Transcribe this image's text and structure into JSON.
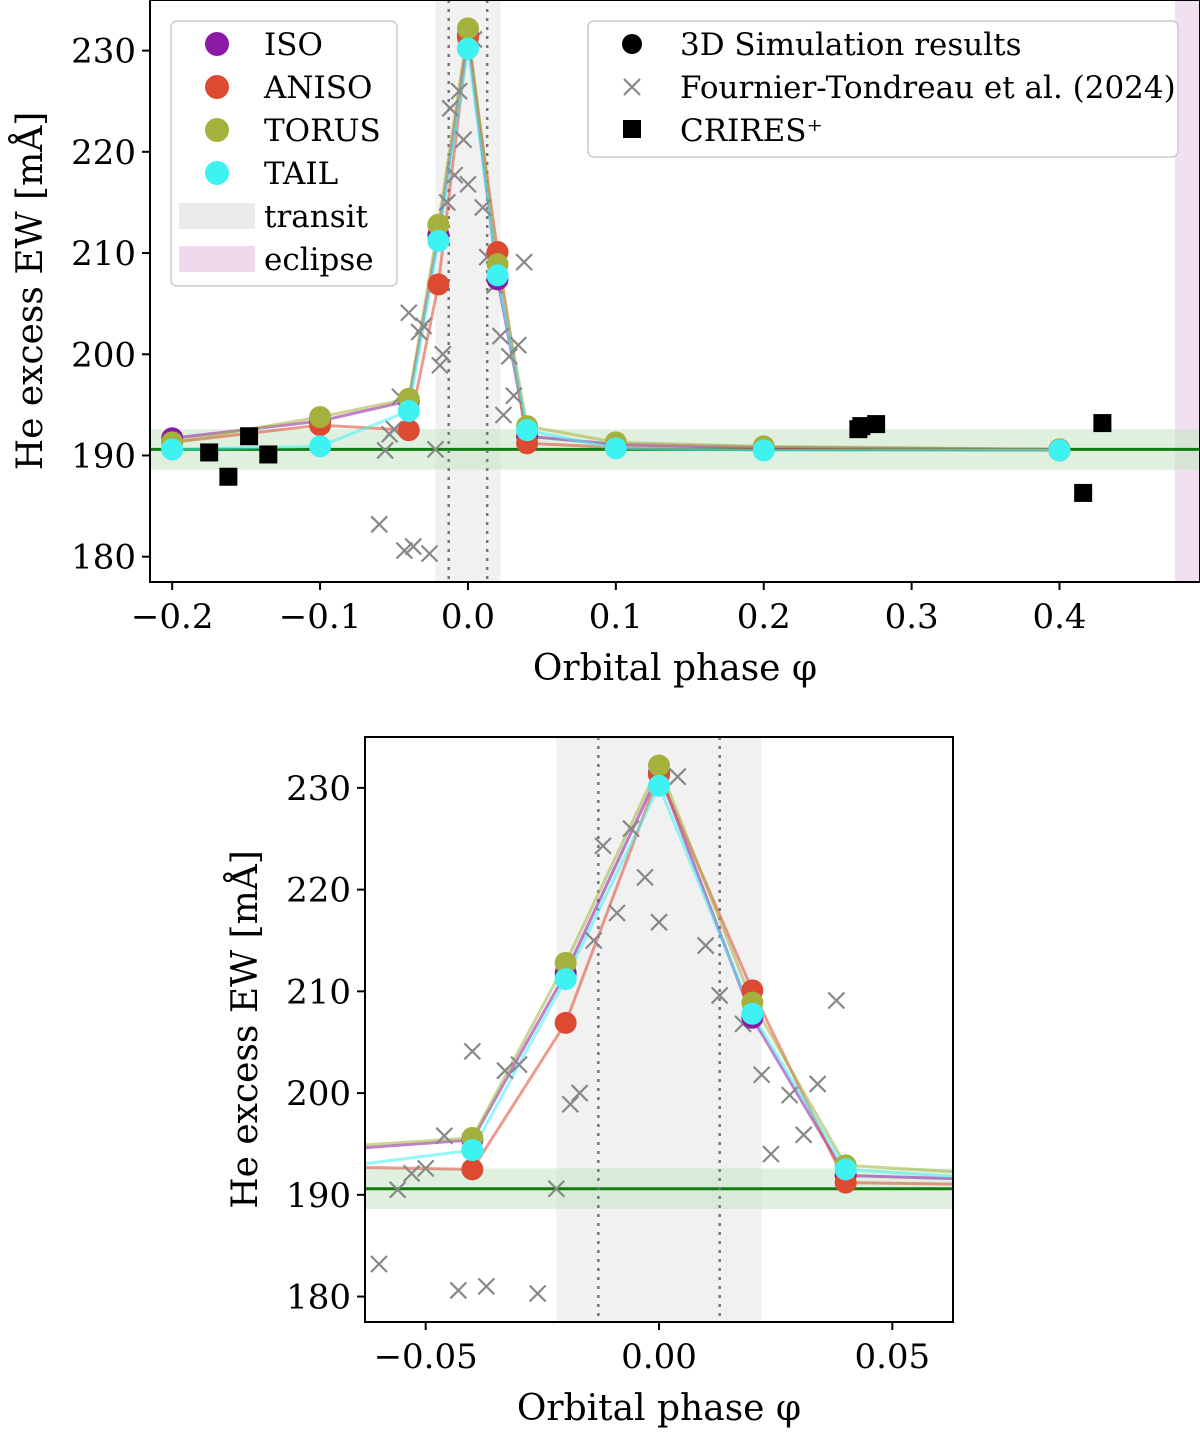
{
  "chart_data": [
    {
      "type": "scatter",
      "title": "",
      "xlabel": "Orbital phase φ",
      "ylabel": "He excess EW [mÅ]",
      "xlim": [
        -0.215,
        0.495
      ],
      "ylim": [
        177.5,
        235
      ],
      "xticks": [
        -0.2,
        -0.1,
        0.0,
        0.1,
        0.2,
        0.3,
        0.4
      ],
      "xtick_labels": [
        "−0.2",
        "−0.1",
        "0.0",
        "0.1",
        "0.2",
        "0.3",
        "0.4"
      ],
      "yticks": [
        180,
        190,
        200,
        210,
        220,
        230
      ],
      "ytick_labels": [
        "180",
        "190",
        "200",
        "210",
        "220",
        "230"
      ],
      "grid": false,
      "legend_placement": [
        "top-left",
        "top-right"
      ],
      "transit_band": [
        -0.022,
        0.022
      ],
      "transit_lines": [
        -0.013,
        0.013
      ],
      "eclipse_band": [
        0.478,
        0.5
      ],
      "baseline": {
        "value": 190.6,
        "band": [
          188.6,
          192.6
        ]
      },
      "simulation_phases": [
        -0.2,
        -0.1,
        -0.04,
        -0.02,
        0.0,
        0.02,
        0.04,
        0.1,
        0.2,
        0.4
      ],
      "series": [
        {
          "name": "ISO",
          "color": "#8b1aa6",
          "values": [
            191.7,
            193.4,
            195.4,
            211.8,
            231.5,
            207.4,
            191.9,
            191.1,
            190.8,
            190.6
          ]
        },
        {
          "name": "ANISO",
          "color": "#dc4a32",
          "values": [
            191.3,
            193.0,
            192.5,
            206.9,
            231.3,
            210.1,
            191.2,
            190.8,
            190.6,
            190.5
          ]
        },
        {
          "name": "TORUS",
          "color": "#a4b13c",
          "values": [
            191.3,
            193.8,
            195.6,
            212.8,
            232.2,
            208.9,
            192.9,
            191.3,
            190.9,
            190.6
          ]
        },
        {
          "name": "TAIL",
          "color": "#3ef2f2",
          "values": [
            190.6,
            190.9,
            194.4,
            211.2,
            230.2,
            207.8,
            192.5,
            190.7,
            190.5,
            190.5
          ]
        }
      ],
      "observations": {
        "name": "Fournier-Tondreau et al. (2024)",
        "x": [
          -0.06,
          -0.056,
          -0.053,
          -0.05,
          -0.046,
          -0.043,
          -0.04,
          -0.037,
          -0.033,
          -0.03,
          -0.026,
          -0.022,
          -0.019,
          -0.017,
          -0.014,
          -0.012,
          -0.009,
          -0.006,
          -0.003,
          0.0,
          0.004,
          0.01,
          0.013,
          0.018,
          0.022,
          0.024,
          0.028,
          0.031,
          0.034,
          0.038
        ],
        "y": [
          183.2,
          190.5,
          192.1,
          192.6,
          195.8,
          180.6,
          204.1,
          181.0,
          202.2,
          202.8,
          180.3,
          190.6,
          198.9,
          200.0,
          215.0,
          224.3,
          217.7,
          226.0,
          221.2,
          216.8,
          231.1,
          214.5,
          209.6,
          206.8,
          201.8,
          194.0,
          199.8,
          195.9,
          200.9,
          209.1
        ]
      },
      "crires": {
        "name": "CRIRES$^+$",
        "x": [
          -0.175,
          -0.162,
          -0.148,
          -0.135,
          0.264,
          0.266,
          0.276,
          0.416,
          0.429
        ],
        "y": [
          190.3,
          187.9,
          191.9,
          190.1,
          192.6,
          192.9,
          193.1,
          186.3,
          193.2
        ]
      },
      "legend1": [
        "ISO",
        "ANISO",
        "TORUS",
        "TAIL",
        "transit",
        "eclipse"
      ],
      "legend2": [
        "3D Simulation results",
        "Fournier-Tondreau et al. (2024)",
        "CRIRES⁺"
      ]
    },
    {
      "type": "scatter",
      "title": "",
      "xlabel": "Orbital phase φ",
      "ylabel": "He excess EW [mÅ]",
      "xlim": [
        -0.063,
        0.063
      ],
      "ylim": [
        177.5,
        235
      ],
      "xticks": [
        -0.05,
        0.0,
        0.05
      ],
      "xtick_labels": [
        "−0.05",
        "0.00",
        "0.05"
      ],
      "yticks": [
        180,
        190,
        200,
        210,
        220,
        230
      ],
      "ytick_labels": [
        "180",
        "190",
        "200",
        "210",
        "220",
        "230"
      ],
      "grid": false
    }
  ]
}
